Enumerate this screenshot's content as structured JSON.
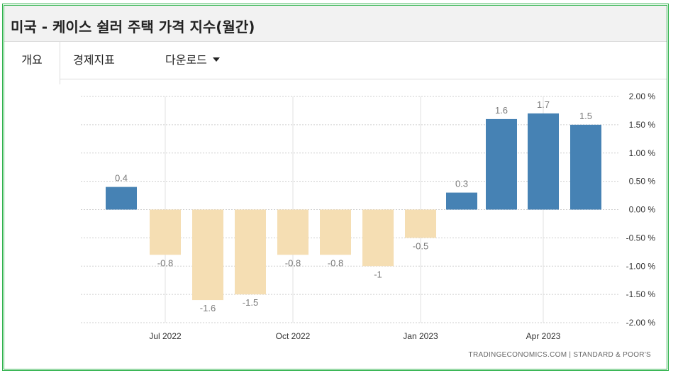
{
  "header": {
    "title": "미국 - 케이스 쉴러 주택 가격 지수(월간)"
  },
  "tabs": [
    {
      "label": "개요",
      "active": true
    },
    {
      "label": "경제지표",
      "active": false
    },
    {
      "label": "다운로드",
      "active": false
    }
  ],
  "colors": {
    "positive": "#4682b4",
    "negative": "#f5deb3",
    "frame": "#2db14a"
  },
  "source": "TRADINGECONOMICS.COM  |  STANDARD & POOR'S",
  "chart_data": {
    "type": "bar",
    "categories": [
      "2022-06",
      "2022-07",
      "2022-08",
      "2022-09",
      "2022-10",
      "2022-11",
      "2022-12",
      "2023-01",
      "2023-02",
      "2023-03",
      "2023-04",
      "2023-05"
    ],
    "values": [
      0.4,
      -0.8,
      -1.6,
      -1.5,
      -0.8,
      -0.8,
      -1,
      -0.5,
      0.3,
      1.6,
      1.7,
      1.5
    ],
    "value_labels": [
      "0.4",
      "-0.8",
      "-1.6",
      "-1.5",
      "-0.8",
      "-0.8",
      "-1",
      "-0.5",
      "0.3",
      "1.6",
      "1.7",
      "1.5"
    ],
    "x_tick_labels": [
      "Jul 2022",
      "Oct 2022",
      "Jan 2023",
      "Apr 2023"
    ],
    "y_tick_labels": [
      "2.00 %",
      "1.50 %",
      "1.00 %",
      "0.50 %",
      "0.00 %",
      "-0.50 %",
      "-1.00 %",
      "-1.50 %",
      "-2.00 %"
    ],
    "y_ticks": [
      2,
      1.5,
      1,
      0.5,
      0,
      -0.5,
      -1,
      -1.5,
      -2
    ],
    "ylim": [
      -2,
      2
    ],
    "y_axis_side": "right",
    "grid": true,
    "legend": "none"
  }
}
